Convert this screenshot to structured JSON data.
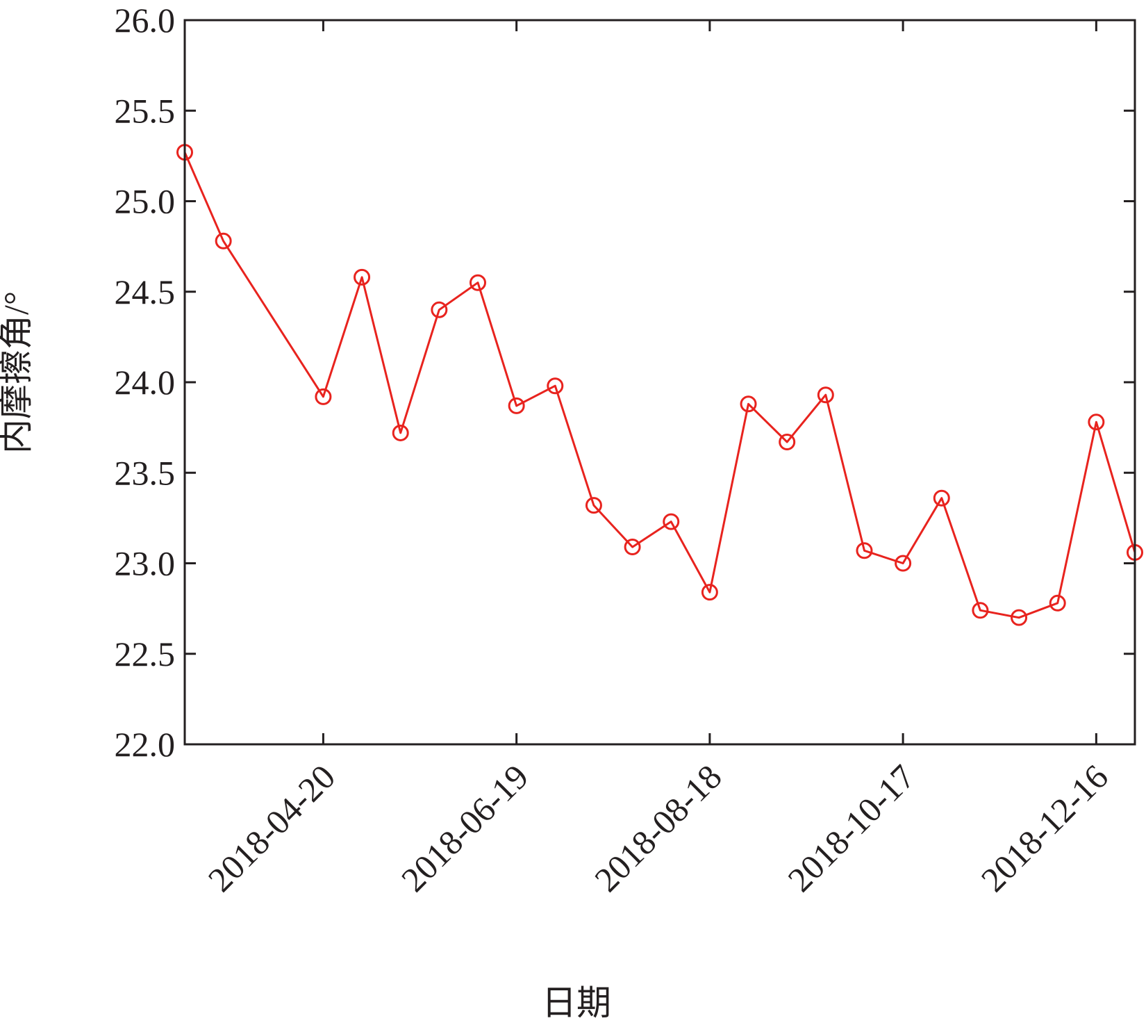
{
  "chart_data": {
    "type": "line",
    "title": "",
    "xlabel": "日期",
    "ylabel": "内摩擦角/°",
    "ylim": [
      22.0,
      26.0
    ],
    "yticks": [
      "22.0",
      "22.5",
      "23.0",
      "23.5",
      "24.0",
      "24.5",
      "25.0",
      "25.5",
      "26.0"
    ],
    "xlim": [
      "2018-03-08",
      "2018-12-28"
    ],
    "xticks": [
      "2018-04-20",
      "2018-06-19",
      "2018-08-18",
      "2018-10-17",
      "2018-12-16"
    ],
    "grid": false,
    "series": [
      {
        "color": "#e8231e",
        "marker": "open-circle",
        "x": [
          "2018-03-08",
          "2018-03-20",
          "2018-04-20",
          "2018-05-02",
          "2018-05-14",
          "2018-05-26",
          "2018-06-07",
          "2018-06-19",
          "2018-07-01",
          "2018-07-13",
          "2018-07-25",
          "2018-08-06",
          "2018-08-18",
          "2018-08-30",
          "2018-09-11",
          "2018-09-23",
          "2018-10-05",
          "2018-10-17",
          "2018-10-29",
          "2018-11-10",
          "2018-11-22",
          "2018-12-04",
          "2018-12-16",
          "2018-12-28"
        ],
        "y": [
          25.27,
          24.78,
          23.92,
          24.58,
          23.72,
          24.4,
          24.55,
          23.87,
          23.98,
          23.32,
          23.09,
          23.23,
          22.84,
          23.88,
          23.67,
          23.93,
          23.07,
          23.0,
          23.36,
          22.74,
          22.7,
          22.78,
          23.78,
          23.06
        ]
      }
    ]
  }
}
